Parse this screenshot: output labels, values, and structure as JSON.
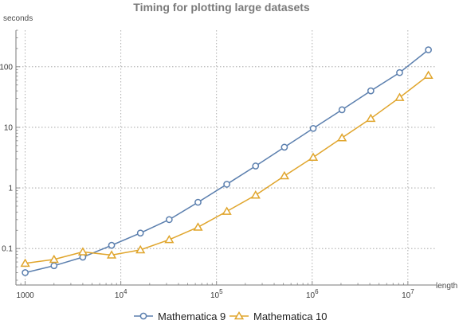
{
  "chart_data": {
    "type": "line",
    "title": "Timing for plotting large datasets",
    "xlabel": "length",
    "ylabel": "seconds",
    "x_scale": "log",
    "y_scale": "log",
    "xlim": [
      800,
      20000000
    ],
    "ylim": [
      0.025,
      400
    ],
    "grid": true,
    "legend_position": "bottom",
    "x_ticks": [
      {
        "value": 1000,
        "base": "1000",
        "exp": ""
      },
      {
        "value": 10000,
        "base": "10",
        "exp": "4"
      },
      {
        "value": 100000,
        "base": "10",
        "exp": "5"
      },
      {
        "value": 1000000,
        "base": "10",
        "exp": "6"
      },
      {
        "value": 10000000,
        "base": "10",
        "exp": "7"
      }
    ],
    "y_ticks": [
      {
        "value": 0.1,
        "label": "0.1"
      },
      {
        "value": 1,
        "label": "1"
      },
      {
        "value": 10,
        "label": "10"
      },
      {
        "value": 100,
        "label": "100"
      }
    ],
    "x": [
      1000,
      2000,
      4000,
      8000,
      16000,
      32000,
      64000,
      128000,
      256000,
      512000,
      1024000,
      2048000,
      4096000,
      8192000,
      16384000
    ],
    "series": [
      {
        "name": "Mathematica 9",
        "color": "#5b7fae",
        "marker": "circle",
        "values": [
          0.04,
          0.052,
          0.072,
          0.113,
          0.18,
          0.3,
          0.58,
          1.15,
          2.3,
          4.7,
          9.6,
          19.5,
          40,
          80,
          190
        ]
      },
      {
        "name": "Mathematica 10",
        "color": "#e0a52c",
        "marker": "triangle",
        "values": [
          0.057,
          0.066,
          0.088,
          0.078,
          0.095,
          0.14,
          0.225,
          0.41,
          0.76,
          1.58,
          3.2,
          6.7,
          14,
          31,
          72
        ]
      }
    ]
  }
}
